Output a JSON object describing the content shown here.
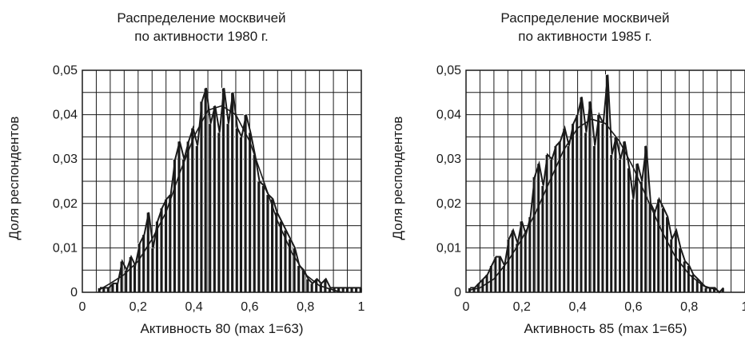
{
  "chart_data": [
    {
      "type": "bar",
      "title": [
        "Распределение москвичей",
        "по активности 1980 г."
      ],
      "xlabel": "Активность 80 (max 1=63)",
      "ylabel": "Доля респондентов",
      "xlim": [
        0,
        1
      ],
      "ylim": [
        0,
        0.05
      ],
      "x_ticks": [
        "0",
        "0,2",
        "0,4",
        "0,6",
        "0,8",
        "1"
      ],
      "y_ticks": [
        "0",
        "0,01",
        "0,02",
        "0,03",
        "0,04",
        "0,05"
      ],
      "grid": true,
      "x": [
        0.063,
        0.079,
        0.095,
        0.111,
        0.127,
        0.143,
        0.159,
        0.175,
        0.19,
        0.206,
        0.222,
        0.238,
        0.254,
        0.27,
        0.286,
        0.302,
        0.317,
        0.333,
        0.349,
        0.365,
        0.381,
        0.397,
        0.413,
        0.429,
        0.444,
        0.46,
        0.476,
        0.492,
        0.508,
        0.524,
        0.54,
        0.556,
        0.571,
        0.587,
        0.603,
        0.619,
        0.635,
        0.651,
        0.667,
        0.683,
        0.698,
        0.714,
        0.73,
        0.746,
        0.762,
        0.778,
        0.794,
        0.81,
        0.825,
        0.841,
        0.857,
        0.873,
        0.889,
        0.905,
        0.921,
        0.937,
        0.952,
        0.968,
        0.984,
        1.0
      ],
      "values": [
        0.001,
        0.001,
        0.001,
        0.002,
        0.002,
        0.007,
        0.005,
        0.008,
        0.006,
        0.011,
        0.013,
        0.018,
        0.01,
        0.016,
        0.019,
        0.021,
        0.022,
        0.03,
        0.034,
        0.03,
        0.034,
        0.037,
        0.033,
        0.043,
        0.046,
        0.038,
        0.042,
        0.036,
        0.046,
        0.038,
        0.045,
        0.037,
        0.035,
        0.04,
        0.036,
        0.031,
        0.025,
        0.024,
        0.022,
        0.021,
        0.018,
        0.016,
        0.014,
        0.012,
        0.01,
        0.006,
        0.005,
        0.003,
        0.002,
        0.003,
        0.002,
        0.003,
        0.001,
        0.001,
        0.001,
        0.001,
        0.001,
        0.001,
        0.001,
        0.001
      ],
      "fit": {
        "x": [
          0.06,
          0.1,
          0.15,
          0.2,
          0.25,
          0.3,
          0.35,
          0.4,
          0.45,
          0.5,
          0.55,
          0.6,
          0.65,
          0.7,
          0.75,
          0.8,
          0.85,
          0.9,
          0.93
        ],
        "y": [
          0.0005,
          0.002,
          0.004,
          0.007,
          0.012,
          0.018,
          0.027,
          0.035,
          0.041,
          0.042,
          0.04,
          0.034,
          0.025,
          0.016,
          0.009,
          0.004,
          0.0015,
          0.0005,
          0.0
        ]
      }
    },
    {
      "type": "bar",
      "title": [
        "Распределение москвичей",
        "по активности 1985 г."
      ],
      "xlabel": "Активность 85 (max 1=65)",
      "ylabel": "Доля респондентов",
      "xlim": [
        0,
        1
      ],
      "ylim": [
        0,
        0.05
      ],
      "x_ticks": [
        "0",
        "0,2",
        "0,4",
        "0,6",
        "0,8",
        "1"
      ],
      "y_ticks": [
        "0",
        "0,01",
        "0,02",
        "0,03",
        "0,04",
        "0,05"
      ],
      "grid": true,
      "x": [
        0.015,
        0.031,
        0.046,
        0.062,
        0.077,
        0.092,
        0.108,
        0.123,
        0.138,
        0.154,
        0.169,
        0.185,
        0.2,
        0.215,
        0.231,
        0.246,
        0.262,
        0.277,
        0.292,
        0.308,
        0.323,
        0.338,
        0.354,
        0.369,
        0.385,
        0.4,
        0.415,
        0.431,
        0.446,
        0.462,
        0.477,
        0.492,
        0.508,
        0.523,
        0.538,
        0.554,
        0.569,
        0.585,
        0.6,
        0.615,
        0.631,
        0.646,
        0.662,
        0.677,
        0.692,
        0.708,
        0.723,
        0.738,
        0.754,
        0.769,
        0.785,
        0.8,
        0.815,
        0.831,
        0.846,
        0.862,
        0.877,
        0.892,
        0.908,
        0.923
      ],
      "values": [
        0.001,
        0.001,
        0.002,
        0.003,
        0.004,
        0.006,
        0.008,
        0.008,
        0.006,
        0.012,
        0.014,
        0.011,
        0.016,
        0.013,
        0.017,
        0.026,
        0.029,
        0.024,
        0.031,
        0.03,
        0.033,
        0.034,
        0.037,
        0.033,
        0.038,
        0.04,
        0.044,
        0.036,
        0.043,
        0.033,
        0.04,
        0.038,
        0.049,
        0.031,
        0.035,
        0.03,
        0.034,
        0.028,
        0.021,
        0.029,
        0.025,
        0.033,
        0.02,
        0.018,
        0.021,
        0.019,
        0.017,
        0.012,
        0.014,
        0.01,
        0.007,
        0.006,
        0.004,
        0.003,
        0.002,
        0.001,
        0.001,
        0.001,
        0.0,
        0.001
      ],
      "fit": {
        "x": [
          0.015,
          0.05,
          0.1,
          0.15,
          0.2,
          0.25,
          0.3,
          0.35,
          0.4,
          0.45,
          0.5,
          0.55,
          0.6,
          0.65,
          0.7,
          0.75,
          0.8,
          0.85,
          0.9
        ],
        "y": [
          0.0005,
          0.001,
          0.003,
          0.007,
          0.012,
          0.018,
          0.025,
          0.032,
          0.037,
          0.039,
          0.038,
          0.034,
          0.028,
          0.021,
          0.014,
          0.008,
          0.004,
          0.0015,
          0.0005
        ]
      }
    }
  ]
}
